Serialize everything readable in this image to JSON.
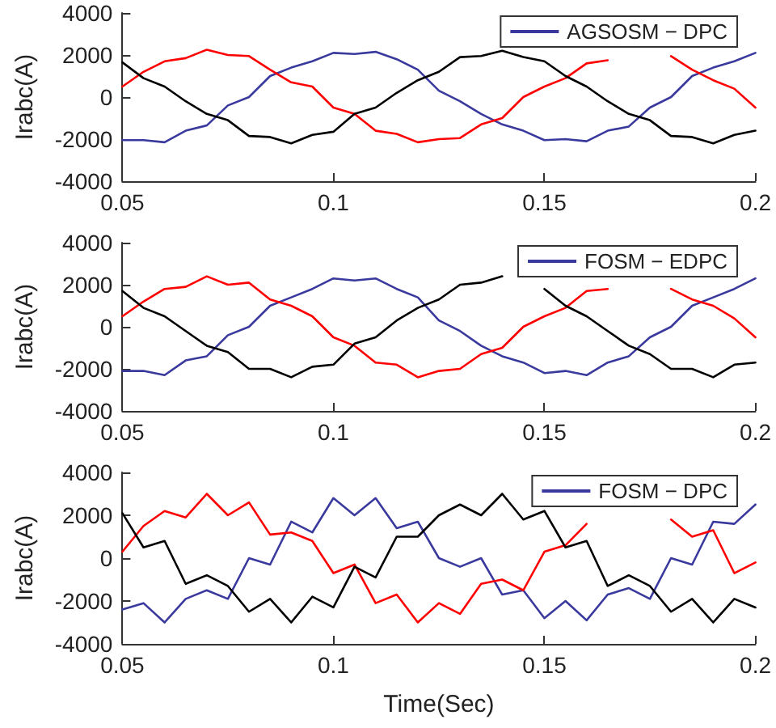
{
  "chart_data": [
    {
      "type": "line",
      "ylabel": "Irabc(A)",
      "xlim": [
        0.05,
        0.2
      ],
      "xticks": [
        0.05,
        0.1,
        0.15,
        0.2
      ],
      "ylim": [
        -4000,
        4000
      ],
      "yticks": [
        -4000,
        -2000,
        0,
        2000,
        4000
      ],
      "grid": false,
      "legend": "top right",
      "x": [
        0.05,
        0.055,
        0.06,
        0.065,
        0.07,
        0.075,
        0.08,
        0.085,
        0.09,
        0.095,
        0.1,
        0.105,
        0.11,
        0.115,
        0.12,
        0.125,
        0.13,
        0.135,
        0.14,
        0.145,
        0.15,
        0.155,
        0.16,
        0.165,
        0.17,
        0.175,
        0.18,
        0.185,
        0.19,
        0.195,
        0.2
      ],
      "series": [
        {
          "name": "AGSOSM − DPC",
          "color": "#3a3a9e",
          "values": [
            -2050,
            -2050,
            -2150,
            -1600,
            -1350,
            -400,
            0,
            1000,
            1400,
            1700,
            2100,
            2050,
            2150,
            1800,
            1300,
            300,
            -200,
            -800,
            -1300,
            -1600,
            -2050,
            -2000,
            -2100,
            -1600,
            -1400,
            -500,
            0,
            1000,
            1400,
            1700,
            2100
          ]
        },
        {
          "color": "#ff0000",
          "values": [
            500,
            1200,
            1700,
            1850,
            2250,
            2000,
            1950,
            1300,
            700,
            500,
            -500,
            -800,
            -1600,
            -1750,
            -2150,
            -2000,
            -1950,
            -1300,
            -1000,
            0,
            500,
            900,
            1600,
            1750,
            null,
            null,
            1950,
            1300,
            800,
            400,
            -500
          ]
        },
        {
          "color": "#000000",
          "values": [
            1650,
            900,
            500,
            -200,
            -800,
            -1100,
            -1850,
            -1900,
            -2200,
            -1800,
            -1650,
            -800,
            -500,
            200,
            800,
            1200,
            1900,
            1950,
            2200,
            1900,
            1700,
            1000,
            500,
            -200,
            -800,
            -1100,
            -1850,
            -1900,
            -2200,
            -1800,
            -1600
          ]
        }
      ]
    },
    {
      "type": "line",
      "ylabel": "Irabc(A)",
      "xlim": [
        0.05,
        0.2
      ],
      "xticks": [
        0.05,
        0.1,
        0.15,
        0.2
      ],
      "ylim": [
        -4000,
        4000
      ],
      "yticks": [
        -4000,
        -2000,
        0,
        2000,
        4000
      ],
      "grid": false,
      "legend": "top right",
      "x": [
        0.05,
        0.055,
        0.06,
        0.065,
        0.07,
        0.075,
        0.08,
        0.085,
        0.09,
        0.095,
        0.1,
        0.105,
        0.11,
        0.115,
        0.12,
        0.125,
        0.13,
        0.135,
        0.14,
        0.145,
        0.15,
        0.155,
        0.16,
        0.165,
        0.17,
        0.175,
        0.18,
        0.185,
        0.19,
        0.195,
        0.2
      ],
      "series": [
        {
          "name": "FOSM − EDPC",
          "color": "#3a3a9e",
          "values": [
            -2100,
            -2100,
            -2300,
            -1600,
            -1400,
            -400,
            0,
            1000,
            1400,
            1800,
            2300,
            2200,
            2300,
            1800,
            1400,
            300,
            -200,
            -900,
            -1400,
            -1700,
            -2200,
            -2100,
            -2300,
            -1700,
            -1400,
            -500,
            0,
            1000,
            1400,
            1800,
            2300
          ]
        },
        {
          "color": "#ff0000",
          "values": [
            500,
            1200,
            1800,
            1900,
            2400,
            2000,
            2100,
            1300,
            1000,
            500,
            -500,
            -900,
            -1700,
            -1800,
            -2400,
            -2100,
            -2000,
            -1300,
            -1000,
            0,
            500,
            900,
            1700,
            1800,
            null,
            null,
            1800,
            1300,
            1000,
            400,
            -500
          ]
        },
        {
          "color": "#000000",
          "values": [
            1700,
            900,
            500,
            -200,
            -900,
            -1200,
            -2000,
            -2000,
            -2400,
            -1900,
            -1800,
            -800,
            -500,
            300,
            900,
            1300,
            2000,
            2100,
            2400,
            null,
            1800,
            1000,
            500,
            -200,
            -900,
            -1300,
            -2000,
            -2000,
            -2400,
            -1800,
            -1700
          ]
        }
      ]
    },
    {
      "type": "line",
      "xlabel": "Time(Sec)",
      "ylabel": "Irabc(A)",
      "xlim": [
        0.05,
        0.2
      ],
      "xticks": [
        0.05,
        0.1,
        0.15,
        0.2
      ],
      "ylim": [
        -4000,
        4000
      ],
      "yticks": [
        -4000,
        -2000,
        0,
        2000,
        4000
      ],
      "grid": false,
      "legend": "top right",
      "x": [
        0.05,
        0.055,
        0.06,
        0.065,
        0.07,
        0.075,
        0.08,
        0.085,
        0.09,
        0.095,
        0.1,
        0.105,
        0.11,
        0.115,
        0.12,
        0.125,
        0.13,
        0.135,
        0.14,
        0.145,
        0.15,
        0.155,
        0.16,
        0.165,
        0.17,
        0.175,
        0.18,
        0.185,
        0.19,
        0.195,
        0.2
      ],
      "series": [
        {
          "name": "FOSM − DPC",
          "color": "#3a3a9e",
          "values": [
            -2400,
            -2100,
            -3000,
            -1900,
            -1500,
            -1900,
            0,
            -300,
            1700,
            1200,
            2800,
            2000,
            2800,
            1400,
            1700,
            0,
            -400,
            0,
            -1700,
            -1500,
            -2800,
            -2000,
            -2900,
            -1700,
            -1400,
            -1900,
            0,
            -300,
            1700,
            1600,
            2500
          ]
        },
        {
          "color": "#ff0000",
          "values": [
            300,
            1500,
            2200,
            1900,
            3000,
            2000,
            2600,
            1100,
            1200,
            800,
            -700,
            -300,
            -2100,
            -1700,
            -3000,
            -2100,
            -2600,
            -1200,
            -1000,
            -1500,
            300,
            600,
            1600,
            null,
            null,
            null,
            1800,
            1000,
            1300,
            -700,
            -200
          ]
        },
        {
          "color": "#000000",
          "values": [
            2100,
            500,
            800,
            -1200,
            -800,
            -1300,
            -2500,
            -1900,
            -3000,
            -1800,
            -2300,
            -400,
            -900,
            1000,
            1000,
            2000,
            2500,
            2000,
            3000,
            1800,
            2200,
            500,
            800,
            -1300,
            -800,
            -1300,
            -2500,
            -1900,
            -3000,
            -1900,
            -2300
          ]
        }
      ]
    }
  ]
}
